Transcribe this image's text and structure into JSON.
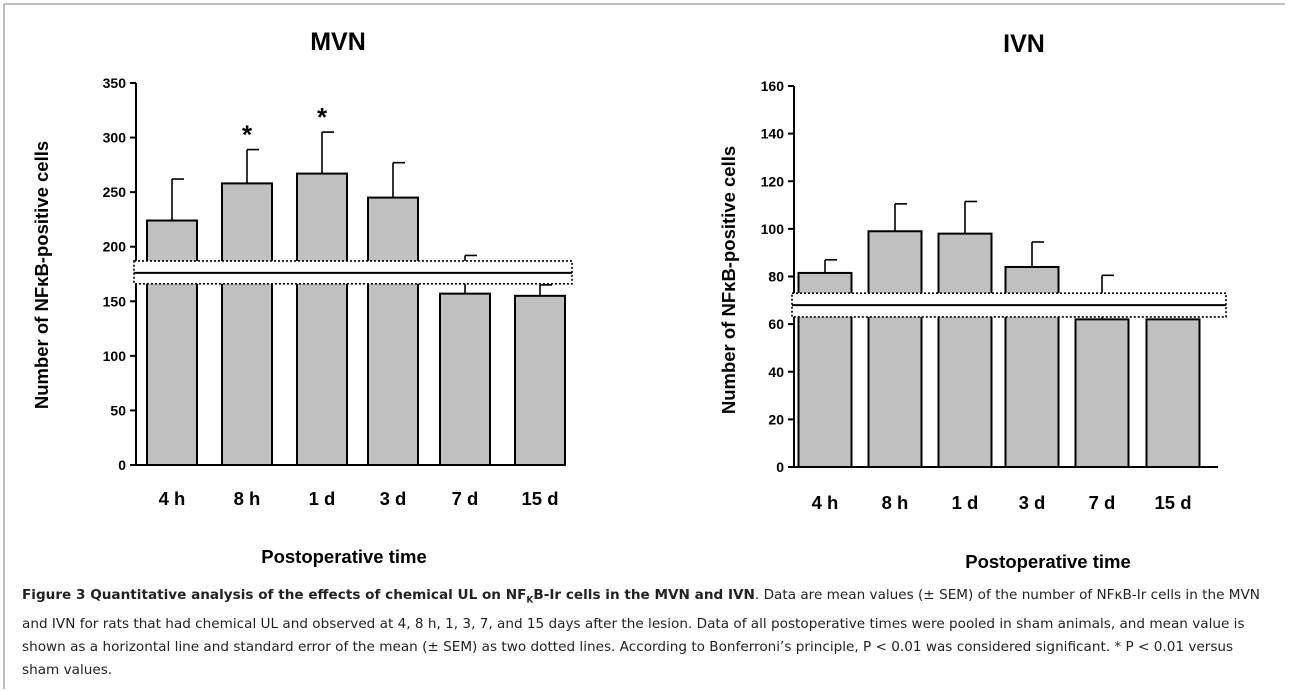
{
  "chart_data": [
    {
      "type": "bar",
      "title": "MVN",
      "xlabel": "Postoperative time",
      "ylabel": "Number of NFκB-positive cells",
      "categories": [
        "4 h",
        "8 h",
        "1 d",
        "3 d",
        "7 d",
        "15 d"
      ],
      "values": [
        224,
        258,
        267,
        245,
        157,
        155
      ],
      "errors": [
        38,
        31,
        38,
        32,
        35,
        10
      ],
      "significant": [
        false,
        true,
        true,
        false,
        false,
        false
      ],
      "significance_marker": "*",
      "ylim": [
        0,
        350
      ],
      "yticks": [
        0,
        50,
        100,
        150,
        200,
        250,
        300,
        350
      ],
      "sham": {
        "mean": 176,
        "lower": 166,
        "upper": 187
      },
      "bar_color": "#c0c0c0"
    },
    {
      "type": "bar",
      "title": "IVN",
      "xlabel": "Postoperative time",
      "ylabel": "Number of NFκB-positive cells",
      "categories": [
        "4 h",
        "8 h",
        "1 d",
        "3 d",
        "7 d",
        "15 d"
      ],
      "values": [
        81.5,
        99,
        98,
        84,
        62,
        62
      ],
      "errors": [
        5.5,
        11.5,
        13.5,
        10.5,
        18.5,
        0
      ],
      "significant": [
        false,
        false,
        false,
        false,
        false,
        false
      ],
      "significance_marker": "*",
      "ylim": [
        0,
        160
      ],
      "yticks": [
        0,
        20,
        40,
        60,
        80,
        100,
        120,
        140,
        160
      ],
      "sham": {
        "mean": 68,
        "lower": 63,
        "upper": 73
      },
      "bar_color": "#c0c0c0"
    }
  ],
  "caption": {
    "label": "Figure 3 Quantitative analysis of the effects of chemical UL on NF",
    "label_sub": "K",
    "label_end": "B-Ir cells in the MVN and IVN",
    "body": ". Data are mean values (± SEM) of the number of NFκB-Ir cells in the MVN and IVN for rats that had chemical UL and observed at 4, 8 h, 1, 3, 7, and 15 days after the lesion. Data of all postoperative times were pooled in sham animals, and mean value is shown as a horizontal line and standard error of the mean (± SEM) as two dotted lines. According to Bonferroni’s principle, P < 0.01 was considered significant. * P < 0.01 versus sham values."
  },
  "colors": {
    "frame": "#888888",
    "bar_fill": "#c0c0c0",
    "text": "#000000"
  }
}
